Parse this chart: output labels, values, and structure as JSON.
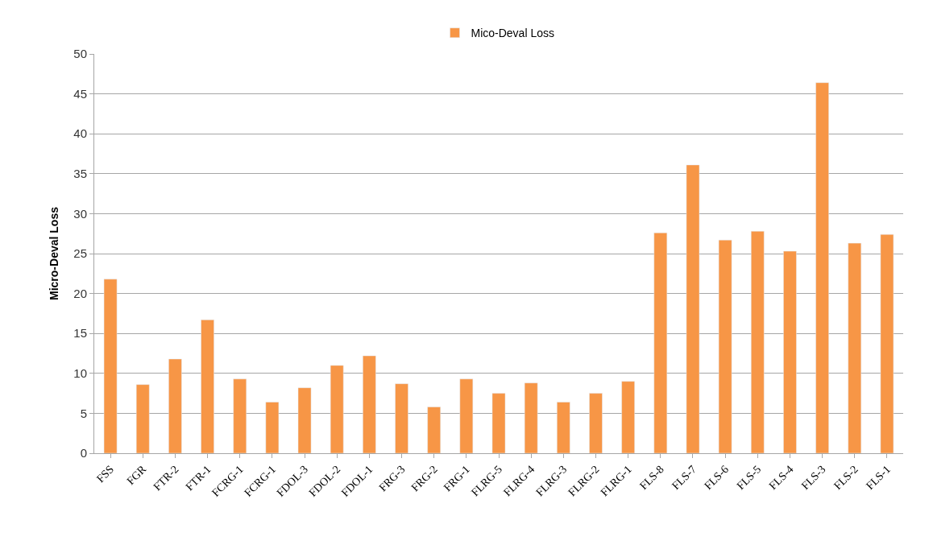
{
  "chart_data": {
    "type": "bar",
    "ylabel": "Micro-Deval Loss",
    "categories": [
      "FSS",
      "FGR",
      "FTR-2",
      "FTR-1",
      "FCRG-1",
      "FCRG-1",
      "FDOL-3",
      "FDOL-2",
      "FDOL-1",
      "FRG-3",
      "FRG-2",
      "FRG-1",
      "FLRG-5",
      "FLRG-4",
      "FLRG-3",
      "FLRG-2",
      "FLRG-1",
      "FLS-8",
      "FLS-7",
      "FLS-6",
      "FLS-5",
      "FLS-4",
      "FLS-3",
      "FLS-2",
      "FLS-1"
    ],
    "series": [
      {
        "name": "Mico-Deval Loss",
        "color": "#f79646",
        "values": [
          21.8,
          8.6,
          11.8,
          16.7,
          9.3,
          6.4,
          8.2,
          11.0,
          12.2,
          8.7,
          5.8,
          9.3,
          7.5,
          8.8,
          6.4,
          7.5,
          9.0,
          27.6,
          36.1,
          26.7,
          27.8,
          25.3,
          46.4,
          26.3,
          27.4
        ]
      }
    ],
    "ylim": [
      0,
      50
    ],
    "yticks": [
      0,
      5,
      10,
      15,
      20,
      25,
      30,
      35,
      40,
      45,
      50
    ],
    "grid": "y",
    "legend": "top"
  }
}
